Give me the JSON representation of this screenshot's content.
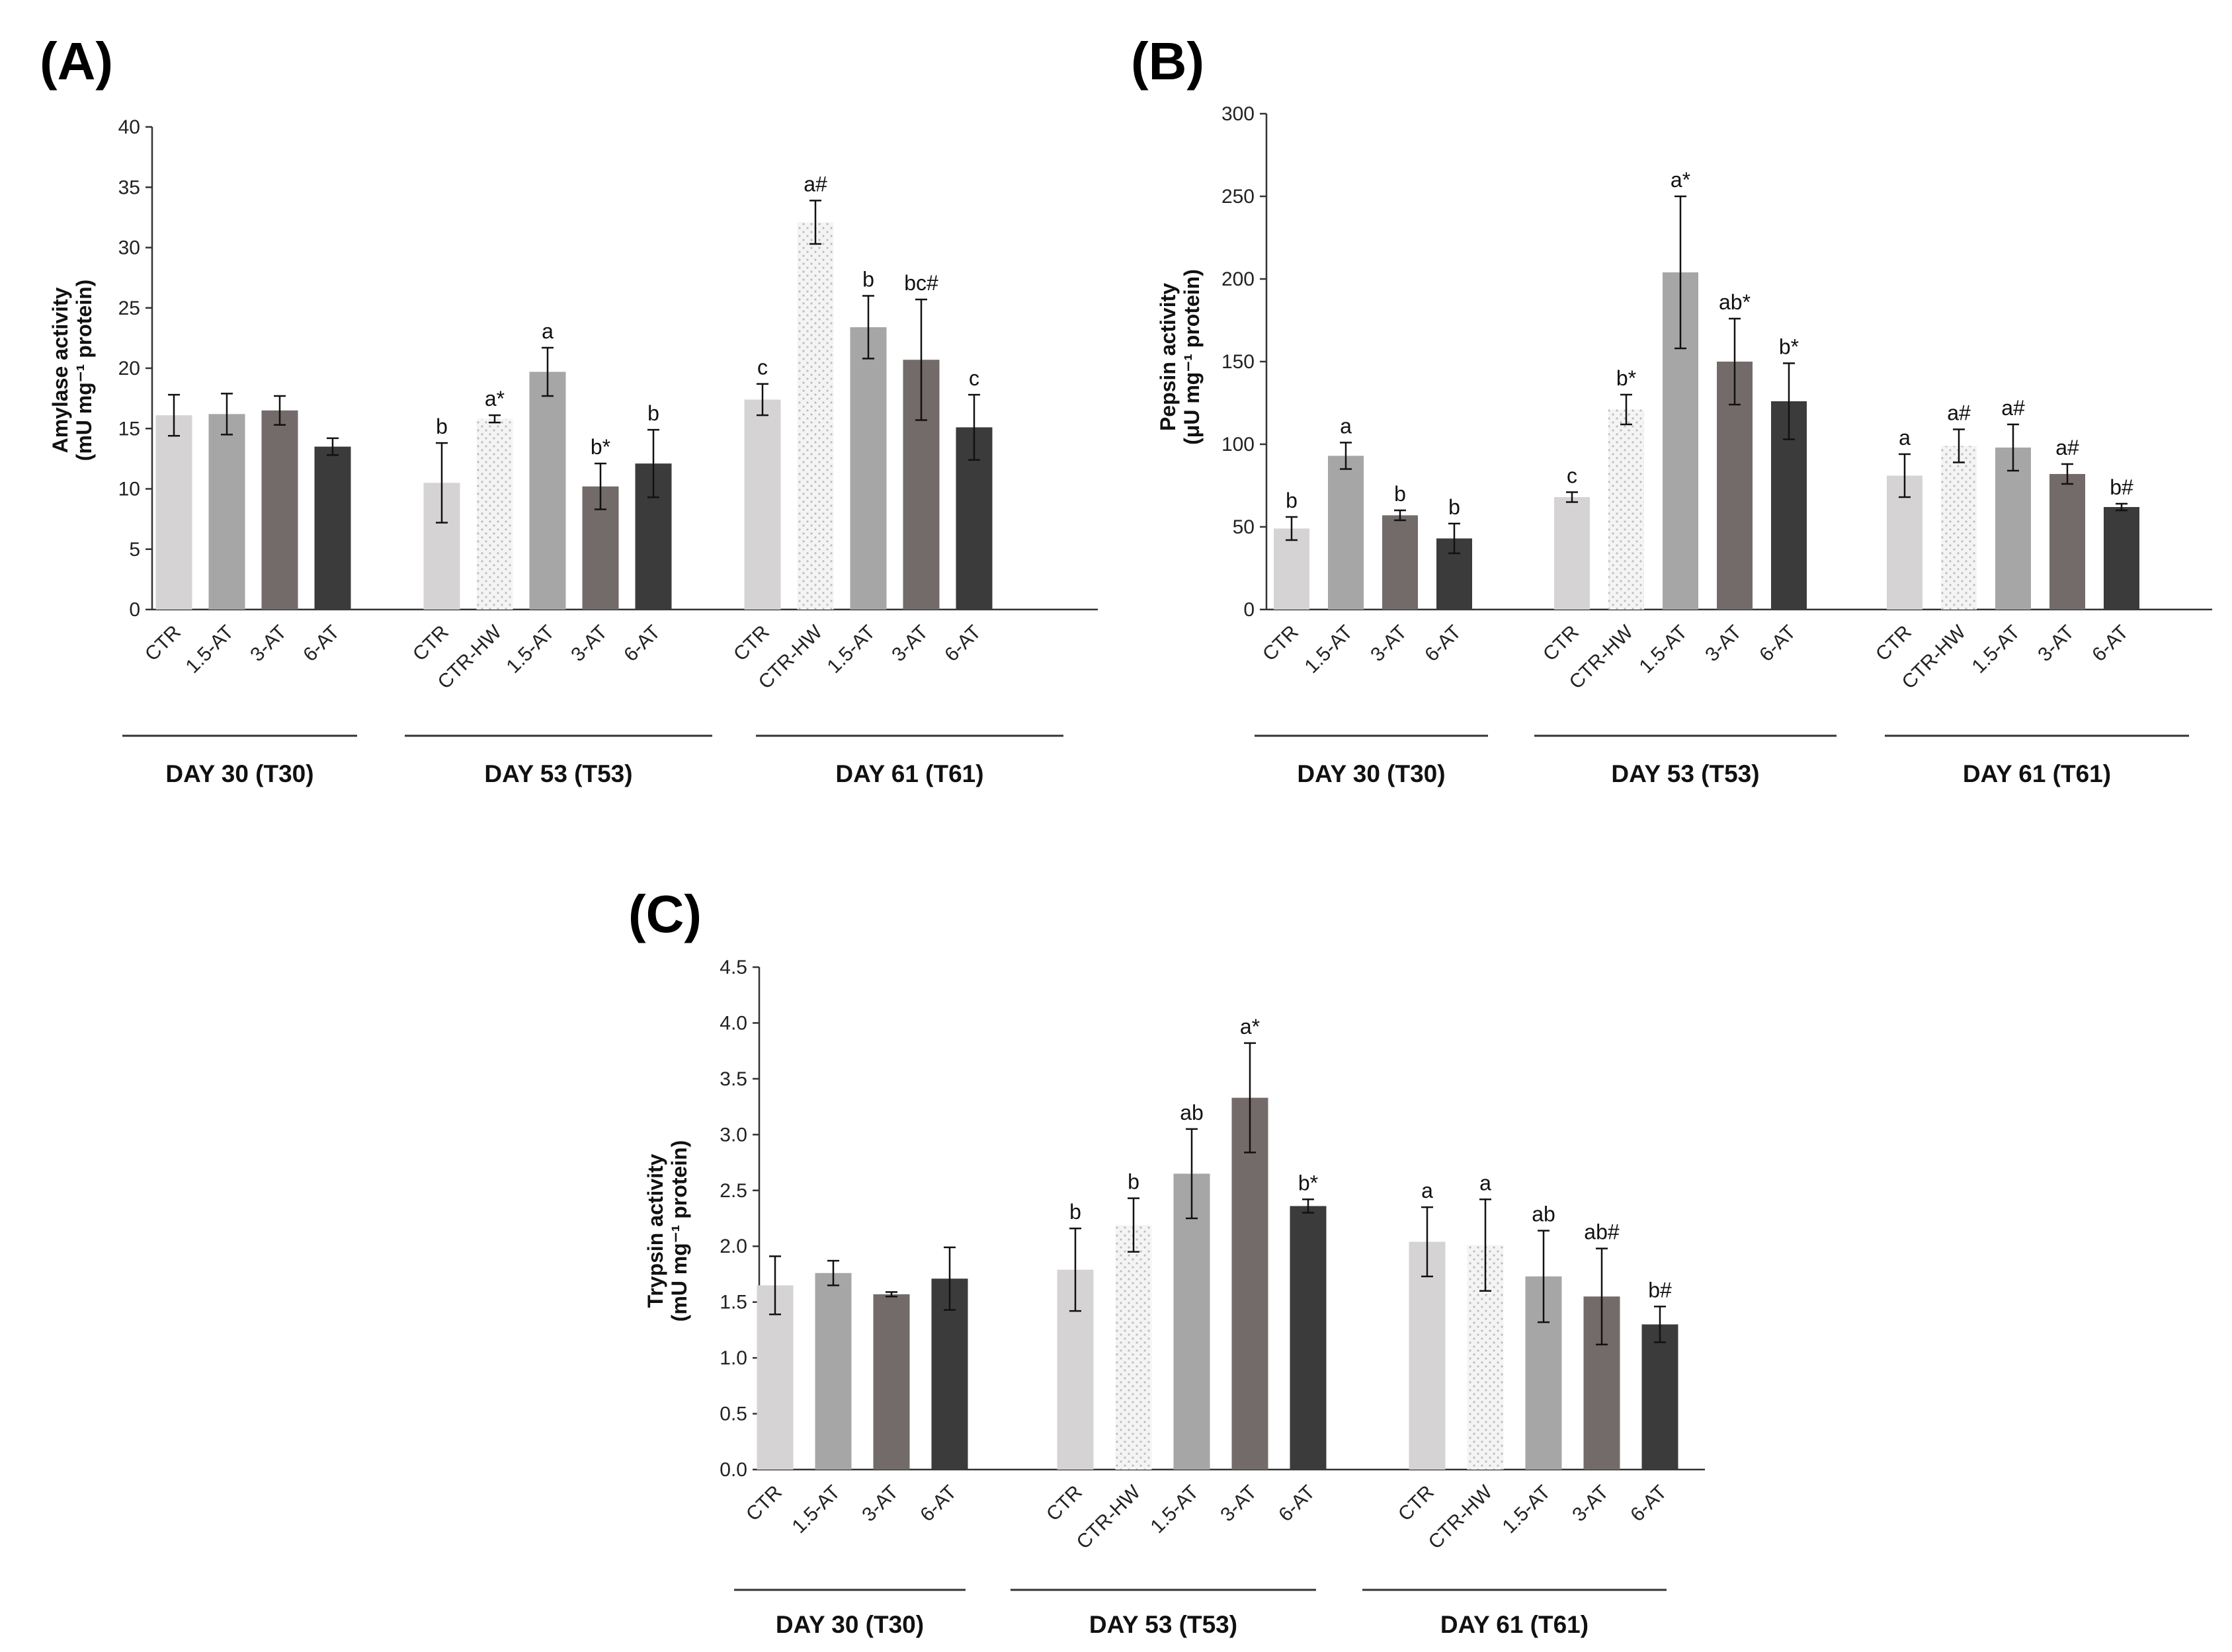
{
  "chart_data": [
    {
      "type": "bar",
      "panel": "(A)",
      "ylabel_line1": "Amylase activity",
      "ylabel_line2": "(mU mg⁻¹ protein)",
      "ylim": [
        0,
        40
      ],
      "yticks": [
        "0",
        "5",
        "10",
        "15",
        "20",
        "25",
        "30",
        "35",
        "40"
      ],
      "ytick_values": [
        0,
        5,
        10,
        15,
        20,
        25,
        30,
        35,
        40
      ],
      "groups": [
        {
          "label": "DAY 30 (T30)",
          "bars": [
            {
              "category": "CTR",
              "value": 16.1,
              "error": 1.7,
              "sig": ""
            },
            {
              "category": "1.5-AT",
              "value": 16.2,
              "error": 1.7,
              "sig": ""
            },
            {
              "category": "3-AT",
              "value": 16.5,
              "error": 1.2,
              "sig": ""
            },
            {
              "category": "6-AT",
              "value": 13.5,
              "error": 0.7,
              "sig": ""
            }
          ]
        },
        {
          "label": "DAY 53 (T53)",
          "bars": [
            {
              "category": "CTR",
              "value": 10.5,
              "error": 3.3,
              "sig": "b"
            },
            {
              "category": "CTR-HW",
              "value": 15.8,
              "error": 0.3,
              "sig": "a*"
            },
            {
              "category": "1.5-AT",
              "value": 19.7,
              "error": 2.0,
              "sig": "a"
            },
            {
              "category": "3-AT",
              "value": 10.2,
              "error": 1.9,
              "sig": "b*"
            },
            {
              "category": "6-AT",
              "value": 12.1,
              "error": 2.8,
              "sig": "b"
            }
          ]
        },
        {
          "label": "DAY 61 (T61)",
          "bars": [
            {
              "category": "CTR",
              "value": 17.4,
              "error": 1.3,
              "sig": "c"
            },
            {
              "category": "CTR-HW",
              "value": 32.1,
              "error": 1.8,
              "sig": "a#"
            },
            {
              "category": "1.5-AT",
              "value": 23.4,
              "error": 2.6,
              "sig": "b"
            },
            {
              "category": "3-AT",
              "value": 20.7,
              "error": 5.0,
              "sig": "bc#"
            },
            {
              "category": "6-AT",
              "value": 15.1,
              "error": 2.7,
              "sig": "c"
            }
          ]
        }
      ]
    },
    {
      "type": "bar",
      "panel": "(B)",
      "ylabel_line1": "Pepsin activity",
      "ylabel_line2": "(μU mg⁻¹ protein)",
      "ylim": [
        0,
        300
      ],
      "yticks": [
        "0",
        "50",
        "100",
        "150",
        "200",
        "250",
        "300"
      ],
      "ytick_values": [
        0,
        50,
        100,
        150,
        200,
        250,
        300
      ],
      "groups": [
        {
          "label": "DAY 30 (T30)",
          "bars": [
            {
              "category": "CTR",
              "value": 49,
              "error": 7,
              "sig": "b"
            },
            {
              "category": "1.5-AT",
              "value": 93,
              "error": 8,
              "sig": "a"
            },
            {
              "category": "3-AT",
              "value": 57,
              "error": 3,
              "sig": "b"
            },
            {
              "category": "6-AT",
              "value": 43,
              "error": 9,
              "sig": "b"
            }
          ]
        },
        {
          "label": "DAY 53 (T53)",
          "bars": [
            {
              "category": "CTR",
              "value": 68,
              "error": 3,
              "sig": "c"
            },
            {
              "category": "CTR-HW",
              "value": 121,
              "error": 9,
              "sig": "b*"
            },
            {
              "category": "1.5-AT",
              "value": 204,
              "error": 46,
              "sig": "a*"
            },
            {
              "category": "3-AT",
              "value": 150,
              "error": 26,
              "sig": "ab*"
            },
            {
              "category": "6-AT",
              "value": 126,
              "error": 23,
              "sig": "b*"
            }
          ]
        },
        {
          "label": "DAY 61 (T61)",
          "bars": [
            {
              "category": "CTR",
              "value": 81,
              "error": 13,
              "sig": "a"
            },
            {
              "category": "CTR-HW",
              "value": 99,
              "error": 10,
              "sig": "a#"
            },
            {
              "category": "1.5-AT",
              "value": 98,
              "error": 14,
              "sig": "a#"
            },
            {
              "category": "3-AT",
              "value": 82,
              "error": 6,
              "sig": "a#"
            },
            {
              "category": "6-AT",
              "value": 62,
              "error": 2,
              "sig": "b#"
            }
          ]
        }
      ]
    },
    {
      "type": "bar",
      "panel": "(C)",
      "ylabel_line1": "Trypsin activity",
      "ylabel_line2": "(mU mg⁻¹ protein)",
      "ylim": [
        0,
        4.5
      ],
      "yticks": [
        "0.0",
        "0.5",
        "1.0",
        "1.5",
        "2.0",
        "2.5",
        "3.0",
        "3.5",
        "4.0",
        "4.5"
      ],
      "ytick_values": [
        0,
        0.5,
        1.0,
        1.5,
        2.0,
        2.5,
        3.0,
        3.5,
        4.0,
        4.5
      ],
      "groups": [
        {
          "label": "DAY 30 (T30)",
          "bars": [
            {
              "category": "CTR",
              "value": 1.65,
              "error": 0.26,
              "sig": ""
            },
            {
              "category": "1.5-AT",
              "value": 1.76,
              "error": 0.11,
              "sig": ""
            },
            {
              "category": "3-AT",
              "value": 1.57,
              "error": 0.02,
              "sig": ""
            },
            {
              "category": "6-AT",
              "value": 1.71,
              "error": 0.28,
              "sig": ""
            }
          ]
        },
        {
          "label": "DAY 53 (T53)",
          "bars": [
            {
              "category": "CTR",
              "value": 1.79,
              "error": 0.37,
              "sig": "b"
            },
            {
              "category": "CTR-HW",
              "value": 2.19,
              "error": 0.24,
              "sig": "b"
            },
            {
              "category": "1.5-AT",
              "value": 2.65,
              "error": 0.4,
              "sig": "ab"
            },
            {
              "category": "3-AT",
              "value": 3.33,
              "error": 0.49,
              "sig": "a*"
            },
            {
              "category": "6-AT",
              "value": 2.36,
              "error": 0.06,
              "sig": "b*"
            }
          ]
        },
        {
          "label": "DAY 61 (T61)",
          "bars": [
            {
              "category": "CTR",
              "value": 2.04,
              "error": 0.31,
              "sig": "a"
            },
            {
              "category": "CTR-HW",
              "value": 2.01,
              "error": 0.41,
              "sig": "a"
            },
            {
              "category": "1.5-AT",
              "value": 1.73,
              "error": 0.41,
              "sig": "ab"
            },
            {
              "category": "3-AT",
              "value": 1.55,
              "error": 0.43,
              "sig": "ab#"
            },
            {
              "category": "6-AT",
              "value": 1.3,
              "error": 0.16,
              "sig": "b#"
            }
          ]
        }
      ]
    }
  ],
  "bar_colors": {
    "CTR": "#d6d3d4",
    "CTR-HW": "#f2f2f2",
    "1.5-AT": "#a6a6a6",
    "3-AT": "#736b69",
    "6-AT": "#3b3b3b"
  }
}
